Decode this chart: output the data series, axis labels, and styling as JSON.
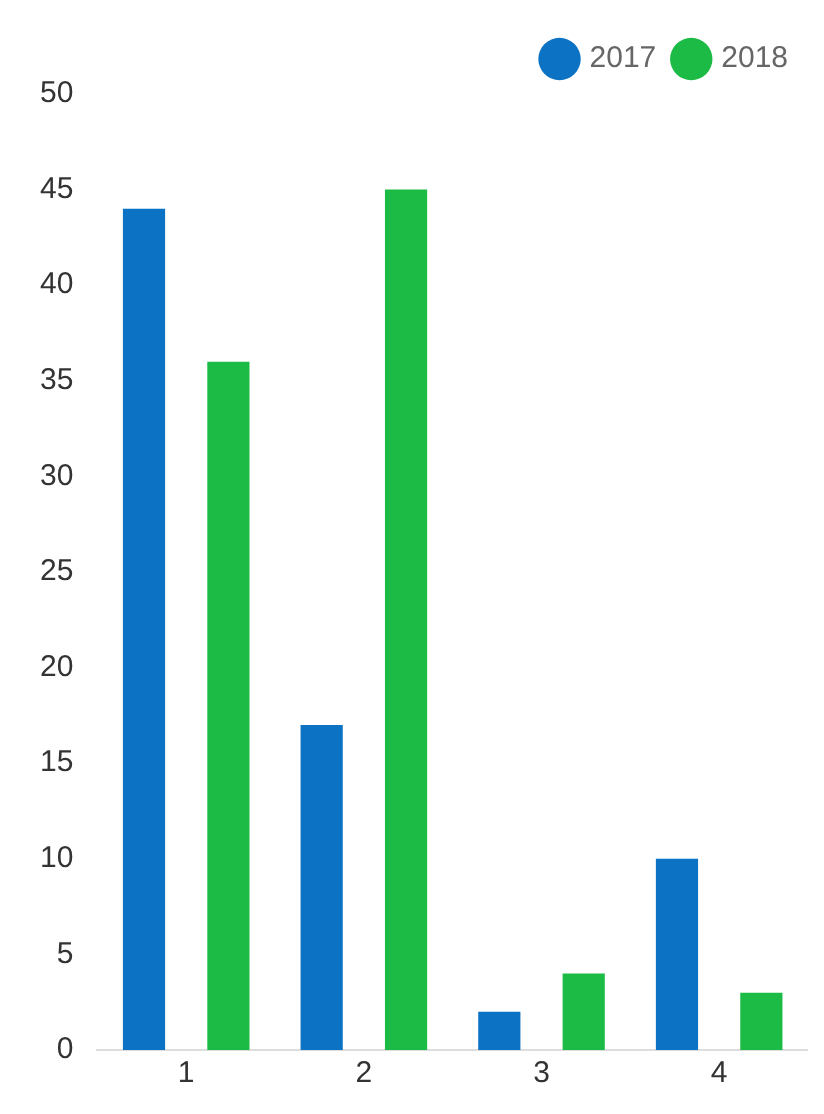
{
  "chart_data": {
    "type": "bar",
    "categories": [
      "1",
      "2",
      "3",
      "4"
    ],
    "series": [
      {
        "name": "2017",
        "color": "#0b72c4",
        "values": [
          44,
          17,
          2,
          10
        ]
      },
      {
        "name": "2018",
        "color": "#1cbb45",
        "values": [
          36,
          45,
          4,
          3
        ]
      }
    ],
    "ylim": [
      0,
      50
    ],
    "yticks": [
      0,
      5,
      10,
      15,
      20,
      25,
      30,
      35,
      40,
      45,
      50
    ],
    "grid": false,
    "legend": "top right"
  }
}
